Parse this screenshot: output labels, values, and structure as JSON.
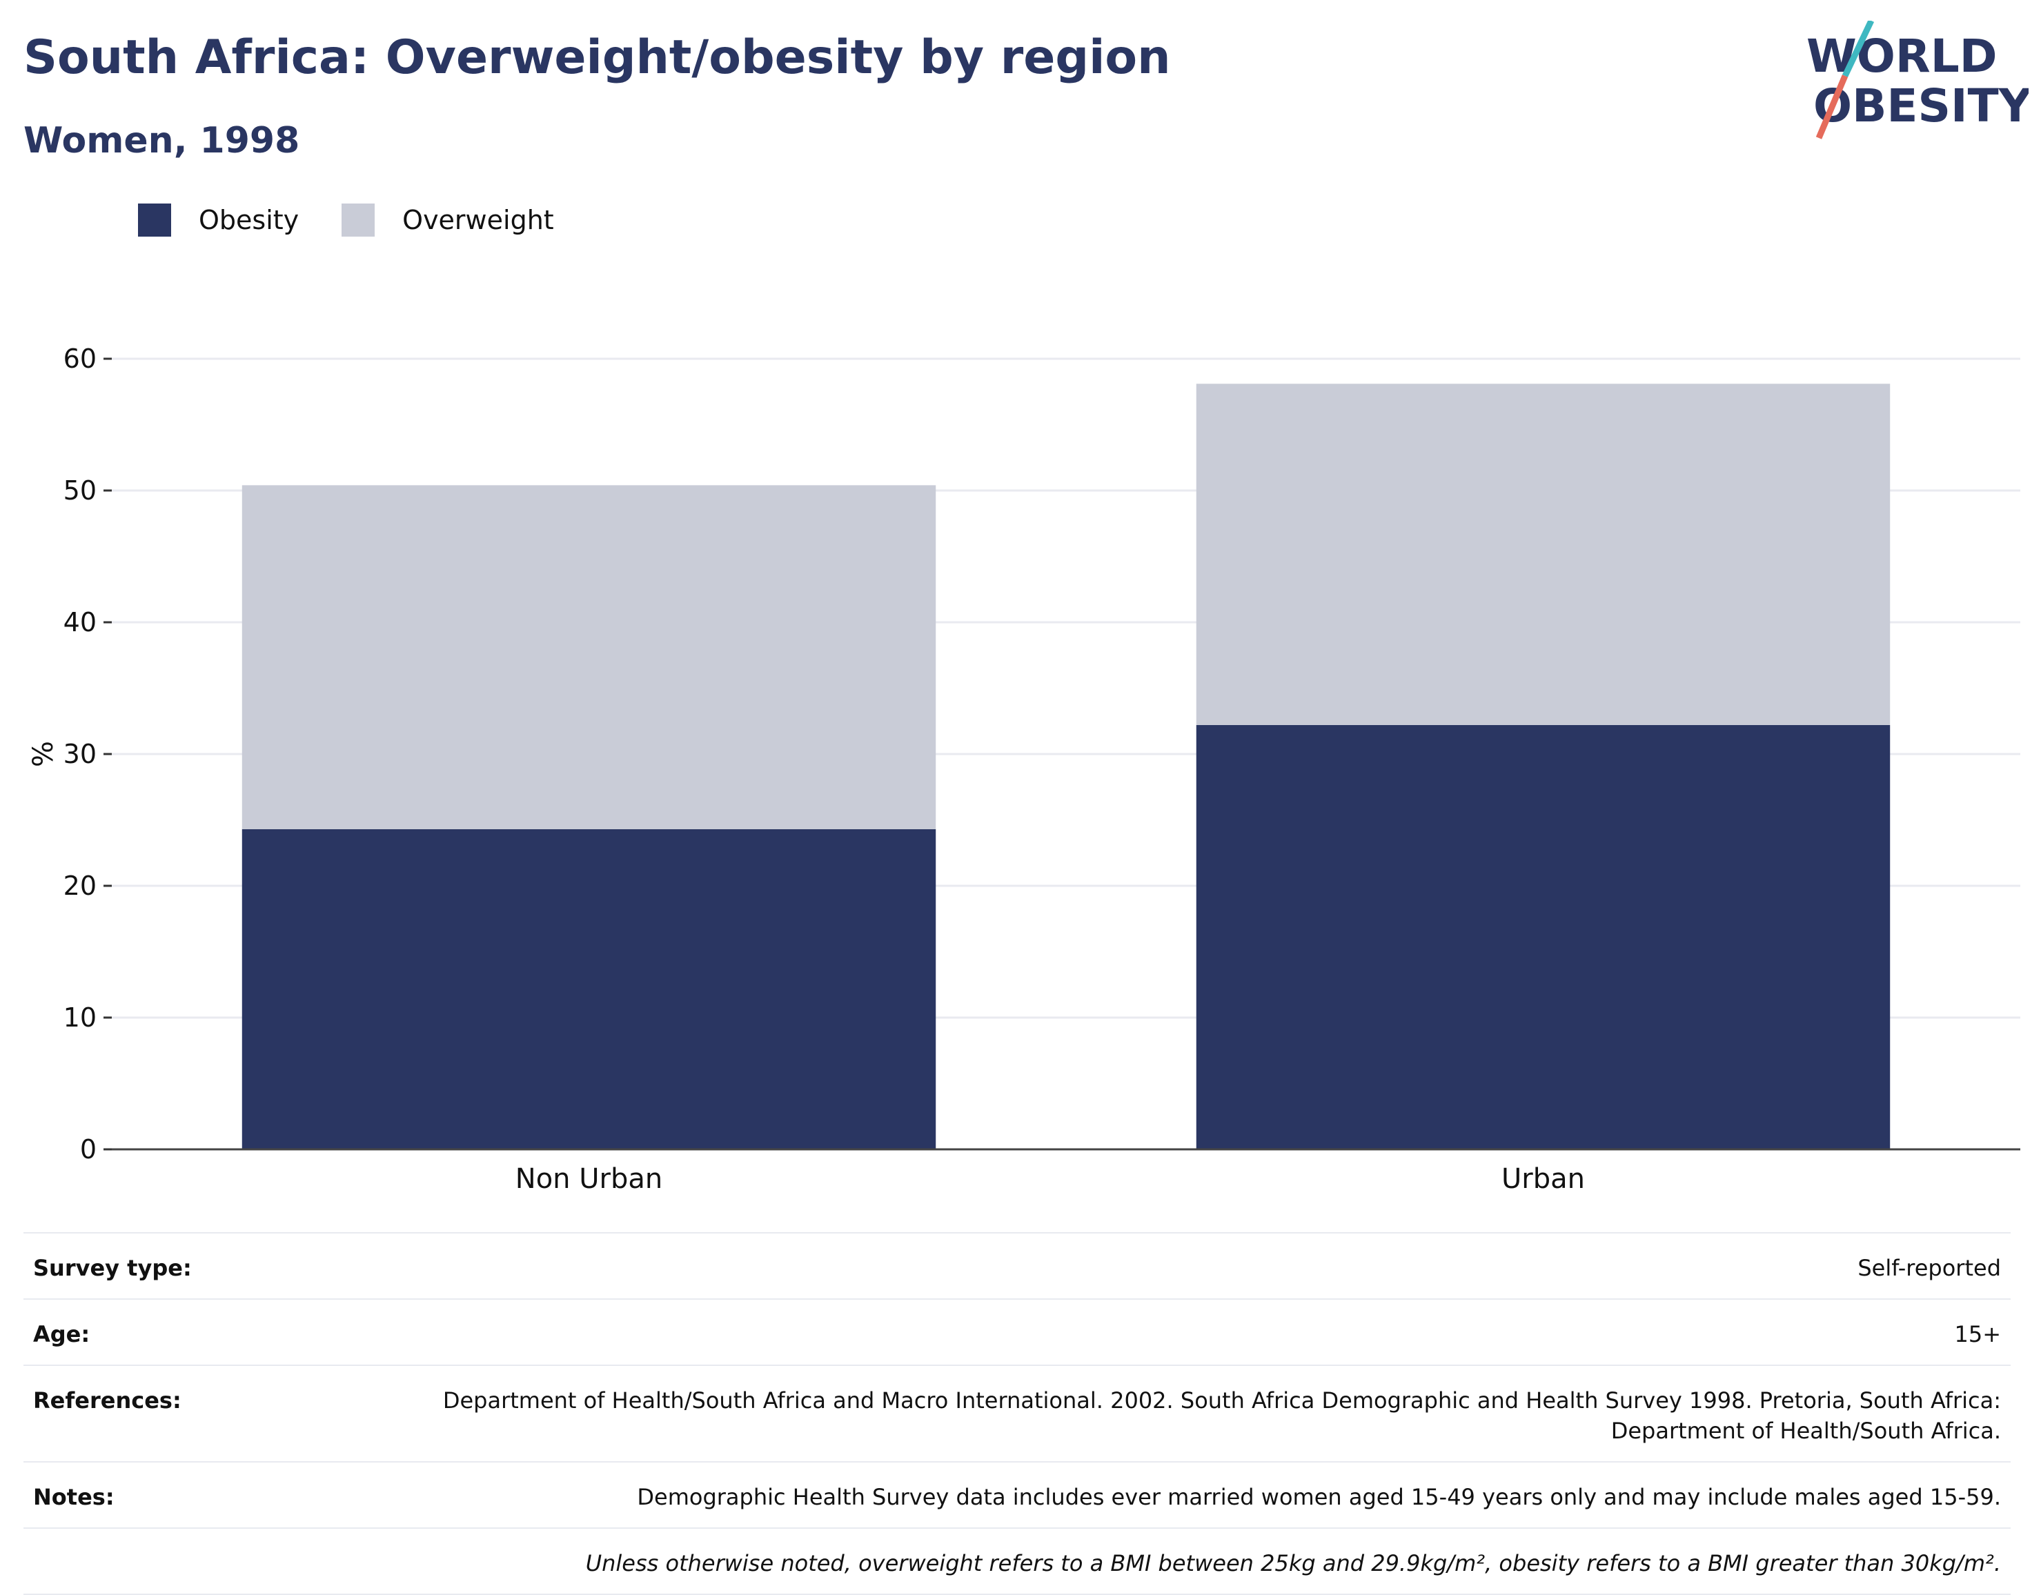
{
  "header": {
    "title": "South Africa: Overweight/obesity by region",
    "subtitle": "Women, 1998"
  },
  "logo": {
    "line1": "WORLD",
    "line2": "OBESITY"
  },
  "legend": [
    {
      "label": "Obesity",
      "color": "#2a3662"
    },
    {
      "label": "Overweight",
      "color": "#c9ccd7"
    }
  ],
  "chart_data": {
    "type": "bar",
    "stacked": true,
    "categories": [
      "Non Urban",
      "Urban"
    ],
    "series": [
      {
        "name": "Obesity",
        "color": "#2a3662",
        "values": [
          24.3,
          32.2
        ]
      },
      {
        "name": "Overweight",
        "color": "#c9ccd7",
        "values": [
          26.1,
          25.9
        ]
      }
    ],
    "ylabel": "%",
    "xlabel": "",
    "ylim": [
      0,
      60
    ],
    "yticks": [
      0,
      10,
      20,
      30,
      40,
      50,
      60
    ],
    "grid": true,
    "legend_position": "top-left"
  },
  "meta": {
    "survey_type_label": "Survey type:",
    "survey_type_value": "Self-reported",
    "age_label": "Age:",
    "age_value": "15+",
    "references_label": "References:",
    "references_value": "Department of Health/South Africa and Macro International. 2002. South Africa Demographic and Health Survey 1998. Pretoria, South Africa: Department of Health/South Africa.",
    "notes_label": "Notes:",
    "notes_value": "Demographic Health Survey data includes ever married women aged 15-49 years only and may include males aged 15-59.",
    "definition_note": "Unless otherwise noted, overweight refers to a BMI between 25kg and 29.9kg/m², obesity refers to a BMI greater than 30kg/m²."
  }
}
